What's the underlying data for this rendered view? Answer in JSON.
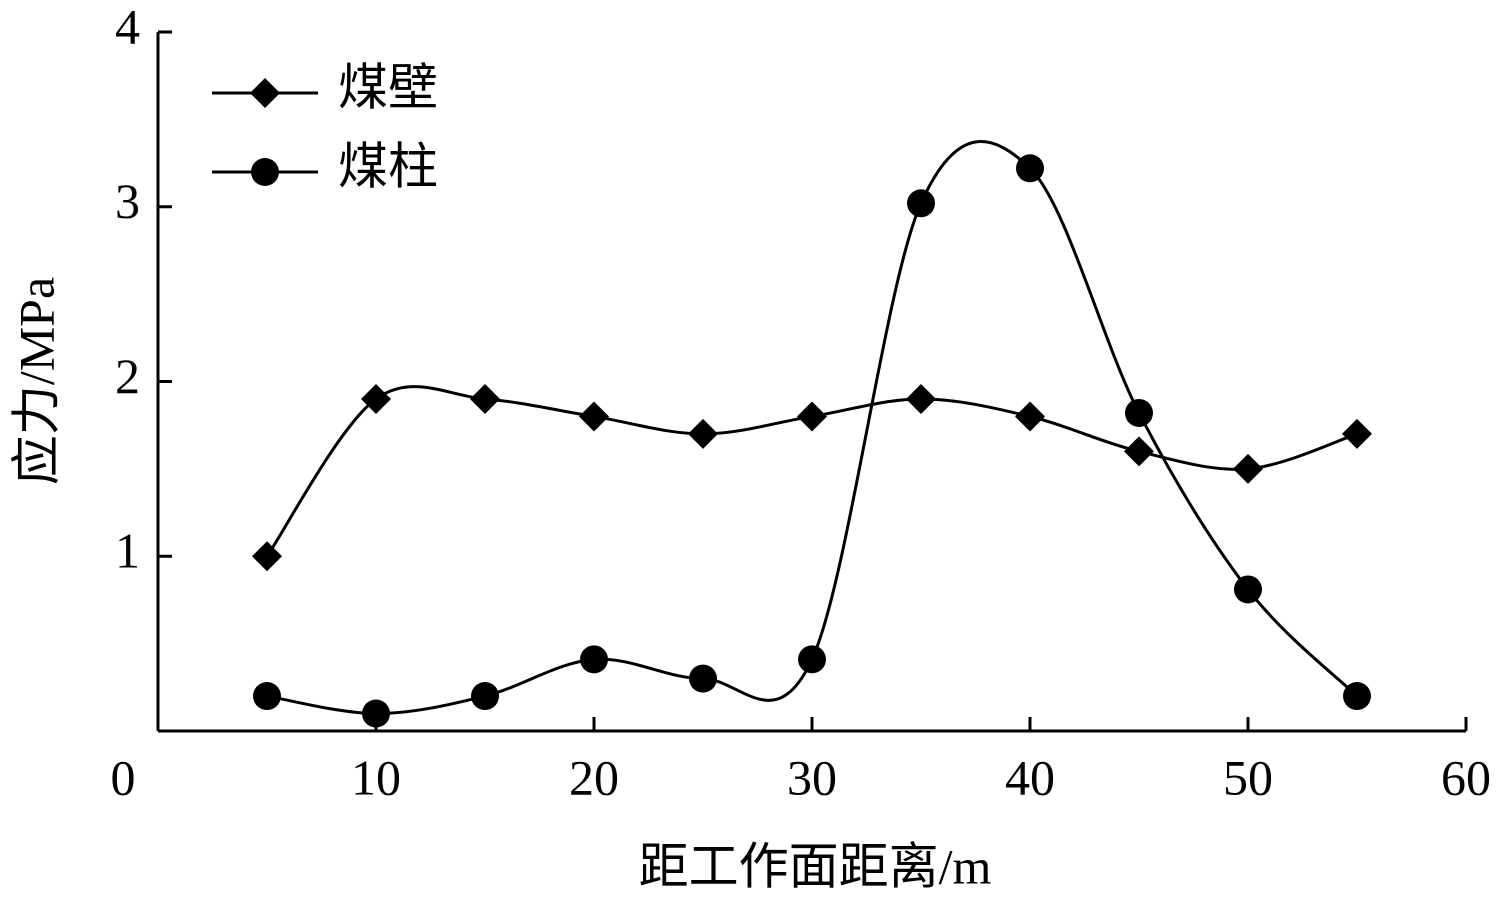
{
  "chart_data": {
    "type": "line",
    "smooth": true,
    "x_label": "距工作面距离/m",
    "y_label": "应力/MPa",
    "x": [
      5,
      10,
      15,
      20,
      25,
      30,
      35,
      40,
      45,
      50,
      55
    ],
    "series": [
      {
        "name": "煤壁",
        "color": "#000000",
        "marker": "diamond",
        "values": [
          1.0,
          1.9,
          1.9,
          1.8,
          1.7,
          1.8,
          1.9,
          1.8,
          1.6,
          1.5,
          1.7
        ]
      },
      {
        "name": "煤柱",
        "color": "#000000",
        "marker": "circle",
        "values": [
          0.2,
          0.1,
          0.2,
          0.41,
          0.3,
          0.41,
          3.02,
          3.22,
          1.82,
          0.81,
          0.2
        ]
      }
    ],
    "xlim": [
      0,
      60
    ],
    "xticks": [
      0,
      10,
      20,
      30,
      40,
      50,
      60
    ],
    "ylim": [
      0,
      4
    ],
    "yticks": [
      1,
      2,
      3,
      4
    ],
    "legend": "upper-left"
  }
}
